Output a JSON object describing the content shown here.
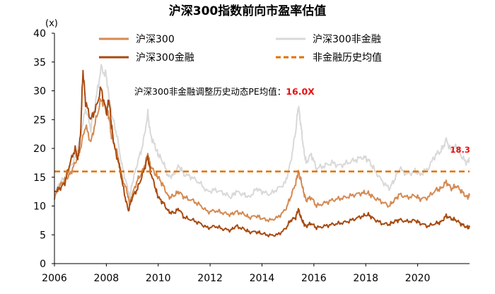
{
  "chart_data": {
    "type": "line",
    "title": "沪深300指数前向市盈率估值",
    "ylabel": "(x)",
    "xlabel": "",
    "xlim": [
      2006,
      2022
    ],
    "ylim": [
      0,
      40
    ],
    "yticks": [
      "0",
      "5",
      "10",
      "15",
      "20",
      "25",
      "30",
      "35",
      "40"
    ],
    "xticks": [
      "2006",
      "2008",
      "2010",
      "2012",
      "2014",
      "2016",
      "2018",
      "2020"
    ],
    "series": [
      {
        "name": "沪深300",
        "color": "#d48a52",
        "points": [
          [
            2006.0,
            11.5
          ],
          [
            2006.2,
            13.5
          ],
          [
            2006.4,
            14.5
          ],
          [
            2006.6,
            15.5
          ],
          [
            2006.8,
            17.5
          ],
          [
            2007.0,
            20.0
          ],
          [
            2007.2,
            24.0
          ],
          [
            2007.4,
            21.0
          ],
          [
            2007.6,
            25.0
          ],
          [
            2007.8,
            28.5
          ],
          [
            2008.0,
            27.0
          ],
          [
            2008.1,
            25.5
          ],
          [
            2008.2,
            22.0
          ],
          [
            2008.4,
            19.5
          ],
          [
            2008.6,
            15.0
          ],
          [
            2008.8,
            12.5
          ],
          [
            2008.9,
            10.2
          ],
          [
            2009.0,
            12.0
          ],
          [
            2009.2,
            14.5
          ],
          [
            2009.4,
            16.0
          ],
          [
            2009.6,
            19.0
          ],
          [
            2009.7,
            17.0
          ],
          [
            2009.9,
            15.5
          ],
          [
            2010.0,
            15.0
          ],
          [
            2010.2,
            13.5
          ],
          [
            2010.4,
            11.5
          ],
          [
            2010.6,
            11.8
          ],
          [
            2010.8,
            12.5
          ],
          [
            2011.0,
            11.5
          ],
          [
            2011.3,
            11.0
          ],
          [
            2011.6,
            10.2
          ],
          [
            2011.9,
            9.0
          ],
          [
            2012.2,
            9.2
          ],
          [
            2012.5,
            8.8
          ],
          [
            2012.8,
            8.5
          ],
          [
            2013.0,
            9.0
          ],
          [
            2013.3,
            8.6
          ],
          [
            2013.5,
            8.0
          ],
          [
            2013.8,
            8.3
          ],
          [
            2014.0,
            7.8
          ],
          [
            2014.3,
            7.5
          ],
          [
            2014.6,
            8.0
          ],
          [
            2014.9,
            9.3
          ],
          [
            2015.1,
            11.5
          ],
          [
            2015.3,
            14.0
          ],
          [
            2015.4,
            16.0
          ],
          [
            2015.5,
            14.5
          ],
          [
            2015.6,
            12.5
          ],
          [
            2015.7,
            11.0
          ],
          [
            2015.9,
            11.5
          ],
          [
            2016.1,
            10.0
          ],
          [
            2016.4,
            10.5
          ],
          [
            2016.7,
            11.0
          ],
          [
            2017.0,
            11.3
          ],
          [
            2017.3,
            11.6
          ],
          [
            2017.6,
            12.0
          ],
          [
            2017.9,
            12.3
          ],
          [
            2018.1,
            12.2
          ],
          [
            2018.3,
            11.5
          ],
          [
            2018.6,
            10.8
          ],
          [
            2018.9,
            10.0
          ],
          [
            2019.1,
            11.0
          ],
          [
            2019.3,
            12.0
          ],
          [
            2019.6,
            11.5
          ],
          [
            2019.9,
            11.8
          ],
          [
            2020.1,
            11.2
          ],
          [
            2020.4,
            11.5
          ],
          [
            2020.7,
            12.8
          ],
          [
            2020.9,
            13.0
          ],
          [
            2021.1,
            14.2
          ],
          [
            2021.3,
            13.0
          ],
          [
            2021.5,
            13.5
          ],
          [
            2021.7,
            12.5
          ],
          [
            2021.9,
            11.5
          ],
          [
            2022.0,
            11.8
          ]
        ]
      },
      {
        "name": "沪深300非金融",
        "color": "#d9d9d9",
        "points": [
          [
            2006.0,
            12.0
          ],
          [
            2006.2,
            14.0
          ],
          [
            2006.4,
            15.0
          ],
          [
            2006.6,
            16.5
          ],
          [
            2006.8,
            18.5
          ],
          [
            2007.0,
            22.0
          ],
          [
            2007.2,
            27.0
          ],
          [
            2007.4,
            23.5
          ],
          [
            2007.6,
            28.5
          ],
          [
            2007.8,
            34.0
          ],
          [
            2008.0,
            32.5
          ],
          [
            2008.1,
            29.0
          ],
          [
            2008.2,
            26.0
          ],
          [
            2008.4,
            22.5
          ],
          [
            2008.6,
            17.0
          ],
          [
            2008.8,
            13.5
          ],
          [
            2008.9,
            11.5
          ],
          [
            2009.0,
            14.0
          ],
          [
            2009.2,
            17.5
          ],
          [
            2009.4,
            20.5
          ],
          [
            2009.6,
            26.0
          ],
          [
            2009.7,
            22.5
          ],
          [
            2009.9,
            20.0
          ],
          [
            2010.0,
            19.0
          ],
          [
            2010.2,
            17.5
          ],
          [
            2010.4,
            15.0
          ],
          [
            2010.6,
            15.5
          ],
          [
            2010.8,
            17.0
          ],
          [
            2011.0,
            15.5
          ],
          [
            2011.3,
            15.0
          ],
          [
            2011.6,
            14.0
          ],
          [
            2011.9,
            12.5
          ],
          [
            2012.2,
            12.8
          ],
          [
            2012.5,
            12.3
          ],
          [
            2012.8,
            11.5
          ],
          [
            2013.0,
            12.5
          ],
          [
            2013.3,
            12.0
          ],
          [
            2013.5,
            11.5
          ],
          [
            2013.8,
            13.0
          ],
          [
            2014.0,
            12.5
          ],
          [
            2014.3,
            12.0
          ],
          [
            2014.6,
            13.0
          ],
          [
            2014.9,
            14.0
          ],
          [
            2015.1,
            17.5
          ],
          [
            2015.3,
            23.0
          ],
          [
            2015.4,
            27.5
          ],
          [
            2015.5,
            24.0
          ],
          [
            2015.6,
            20.0
          ],
          [
            2015.7,
            17.5
          ],
          [
            2015.9,
            19.0
          ],
          [
            2016.1,
            16.5
          ],
          [
            2016.4,
            17.0
          ],
          [
            2016.7,
            17.5
          ],
          [
            2017.0,
            17.0
          ],
          [
            2017.3,
            17.5
          ],
          [
            2017.6,
            18.0
          ],
          [
            2017.9,
            18.5
          ],
          [
            2018.1,
            18.0
          ],
          [
            2018.3,
            16.5
          ],
          [
            2018.6,
            14.5
          ],
          [
            2018.9,
            13.0
          ],
          [
            2019.1,
            14.5
          ],
          [
            2019.3,
            16.5
          ],
          [
            2019.6,
            15.5
          ],
          [
            2019.9,
            16.0
          ],
          [
            2020.1,
            15.5
          ],
          [
            2020.4,
            16.5
          ],
          [
            2020.7,
            19.0
          ],
          [
            2020.9,
            19.5
          ],
          [
            2021.1,
            21.5
          ],
          [
            2021.3,
            19.5
          ],
          [
            2021.5,
            20.5
          ],
          [
            2021.7,
            18.5
          ],
          [
            2021.9,
            17.5
          ],
          [
            2022.0,
            18.3
          ]
        ]
      },
      {
        "name": "沪深300金融",
        "color": "#a84a10",
        "points": [
          [
            2006.0,
            12.5
          ],
          [
            2006.2,
            13.0
          ],
          [
            2006.4,
            14.0
          ],
          [
            2006.6,
            17.5
          ],
          [
            2006.8,
            20.0
          ],
          [
            2006.9,
            18.0
          ],
          [
            2007.0,
            22.0
          ],
          [
            2007.1,
            33.5
          ],
          [
            2007.2,
            28.0
          ],
          [
            2007.4,
            25.0
          ],
          [
            2007.6,
            27.0
          ],
          [
            2007.8,
            30.5
          ],
          [
            2008.0,
            26.0
          ],
          [
            2008.1,
            28.5
          ],
          [
            2008.2,
            24.0
          ],
          [
            2008.3,
            20.5
          ],
          [
            2008.5,
            17.0
          ],
          [
            2008.7,
            12.0
          ],
          [
            2008.85,
            9.2
          ],
          [
            2009.0,
            11.5
          ],
          [
            2009.2,
            13.0
          ],
          [
            2009.4,
            15.5
          ],
          [
            2009.6,
            18.5
          ],
          [
            2009.7,
            16.0
          ],
          [
            2009.9,
            13.0
          ],
          [
            2010.0,
            11.5
          ],
          [
            2010.2,
            10.5
          ],
          [
            2010.4,
            9.0
          ],
          [
            2010.6,
            8.8
          ],
          [
            2010.8,
            9.5
          ],
          [
            2011.0,
            8.0
          ],
          [
            2011.3,
            7.6
          ],
          [
            2011.6,
            7.0
          ],
          [
            2011.9,
            6.2
          ],
          [
            2012.2,
            6.5
          ],
          [
            2012.5,
            6.0
          ],
          [
            2012.8,
            5.8
          ],
          [
            2013.0,
            6.5
          ],
          [
            2013.3,
            6.0
          ],
          [
            2013.5,
            5.5
          ],
          [
            2013.8,
            5.5
          ],
          [
            2014.0,
            5.2
          ],
          [
            2014.3,
            4.9
          ],
          [
            2014.6,
            5.0
          ],
          [
            2014.9,
            6.0
          ],
          [
            2015.1,
            7.5
          ],
          [
            2015.3,
            8.0
          ],
          [
            2015.4,
            9.5
          ],
          [
            2015.5,
            8.0
          ],
          [
            2015.6,
            7.0
          ],
          [
            2015.7,
            6.5
          ],
          [
            2015.9,
            7.0
          ],
          [
            2016.1,
            6.2
          ],
          [
            2016.4,
            6.5
          ],
          [
            2016.7,
            6.8
          ],
          [
            2017.0,
            7.0
          ],
          [
            2017.3,
            7.3
          ],
          [
            2017.6,
            7.8
          ],
          [
            2017.9,
            8.3
          ],
          [
            2018.1,
            8.5
          ],
          [
            2018.3,
            7.8
          ],
          [
            2018.6,
            7.0
          ],
          [
            2018.9,
            6.8
          ],
          [
            2019.1,
            7.3
          ],
          [
            2019.3,
            7.6
          ],
          [
            2019.6,
            7.3
          ],
          [
            2019.9,
            7.5
          ],
          [
            2020.1,
            7.0
          ],
          [
            2020.4,
            6.5
          ],
          [
            2020.7,
            7.0
          ],
          [
            2020.9,
            7.2
          ],
          [
            2021.1,
            8.3
          ],
          [
            2021.3,
            7.8
          ],
          [
            2021.5,
            7.5
          ],
          [
            2021.7,
            6.8
          ],
          [
            2021.9,
            6.3
          ],
          [
            2022.0,
            6.3
          ]
        ]
      }
    ],
    "reference_line": {
      "name": "非金融历史均值",
      "value": 16.0,
      "color": "#e07000"
    },
    "annotation_label": "沪深300非金融调整历史动态PE均值：",
    "annotation_value": "16.0X",
    "end_label": {
      "text": "18.3",
      "x": 2021.25,
      "y": 18.3
    },
    "legend_position": "top"
  }
}
